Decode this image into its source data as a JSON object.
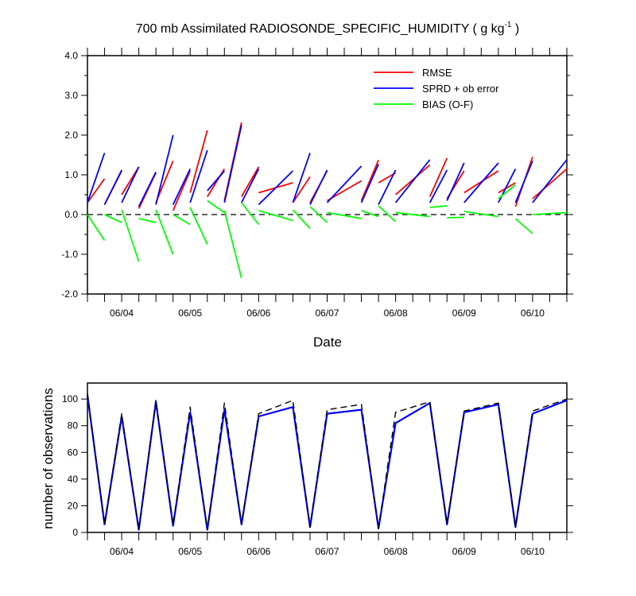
{
  "chart_data": [
    {
      "type": "line",
      "title": "700 mb Assimilated RADIOSONDE_SPECIFIC_HUMIDITY ( g kg",
      "title_superscript": "-1",
      "title_close": " )",
      "xlabel": "Date",
      "ylabel": "",
      "xlim": [
        3.5,
        10.5
      ],
      "ylim": [
        -2.0,
        4.0
      ],
      "yticks": [
        -2.0,
        -1.0,
        0.0,
        1.0,
        2.0,
        3.0,
        4.0
      ],
      "ytick_labels": [
        "-2.0",
        "-1.0",
        "0.0",
        "1.0",
        "2.0",
        "3.0",
        "4.0"
      ],
      "xticks": [
        4,
        5,
        6,
        7,
        8,
        9,
        10
      ],
      "xtick_labels": [
        "06/04",
        "06/05",
        "06/06",
        "06/07",
        "06/08",
        "06/09",
        "06/10"
      ],
      "zero_line": {
        "y": 0,
        "style": "dashed",
        "color": "#000000"
      },
      "legend_position": "top-right",
      "series": [
        {
          "name": "RMSE",
          "color": "#ff0000",
          "segments": [
            {
              "x": [
                3.5,
                3.75
              ],
              "y": [
                0.3,
                0.9
              ]
            },
            {
              "x": [
                3.75,
                4.0
              ],
              "y": [
                0.25,
                1.1
              ]
            },
            {
              "x": [
                4.0,
                4.25
              ],
              "y": [
                0.5,
                1.2
              ]
            },
            {
              "x": [
                4.25,
                4.5
              ],
              "y": [
                0.15,
                1.05
              ]
            },
            {
              "x": [
                4.5,
                4.75
              ],
              "y": [
                0.3,
                1.35
              ]
            },
            {
              "x": [
                4.75,
                5.0
              ],
              "y": [
                0.1,
                1.1
              ]
            },
            {
              "x": [
                5.0,
                5.25
              ],
              "y": [
                0.55,
                2.12
              ]
            },
            {
              "x": [
                5.25,
                5.5
              ],
              "y": [
                0.45,
                1.15
              ]
            },
            {
              "x": [
                5.5,
                5.75
              ],
              "y": [
                0.35,
                2.32
              ]
            },
            {
              "x": [
                5.75,
                6.0
              ],
              "y": [
                0.45,
                1.2
              ]
            },
            {
              "x": [
                6.0,
                6.5
              ],
              "y": [
                0.55,
                0.8
              ]
            },
            {
              "x": [
                6.5,
                6.75
              ],
              "y": [
                0.3,
                0.95
              ]
            },
            {
              "x": [
                6.75,
                7.0
              ],
              "y": [
                0.3,
                1.1
              ]
            },
            {
              "x": [
                7.0,
                7.5
              ],
              "y": [
                0.35,
                0.85
              ]
            },
            {
              "x": [
                7.5,
                7.75
              ],
              "y": [
                0.35,
                1.37
              ]
            },
            {
              "x": [
                7.75,
                8.0
              ],
              "y": [
                0.8,
                1.05
              ]
            },
            {
              "x": [
                8.0,
                8.5
              ],
              "y": [
                0.5,
                1.25
              ]
            },
            {
              "x": [
                8.5,
                8.75
              ],
              "y": [
                0.45,
                1.42
              ]
            },
            {
              "x": [
                8.75,
                9.0
              ],
              "y": [
                0.4,
                1.1
              ]
            },
            {
              "x": [
                9.0,
                9.5
              ],
              "y": [
                0.55,
                1.1
              ]
            },
            {
              "x": [
                9.5,
                9.75
              ],
              "y": [
                0.55,
                0.8
              ]
            },
            {
              "x": [
                9.75,
                10.0
              ],
              "y": [
                0.2,
                1.45
              ]
            },
            {
              "x": [
                10.0,
                10.5
              ],
              "y": [
                0.4,
                1.15
              ]
            }
          ]
        },
        {
          "name": "SPRD + ob error",
          "color": "#0000ff",
          "segments": [
            {
              "x": [
                3.5,
                3.75
              ],
              "y": [
                0.3,
                1.55
              ]
            },
            {
              "x": [
                3.75,
                4.0
              ],
              "y": [
                0.25,
                1.12
              ]
            },
            {
              "x": [
                4.0,
                4.25
              ],
              "y": [
                0.3,
                1.2
              ]
            },
            {
              "x": [
                4.25,
                4.5
              ],
              "y": [
                0.2,
                1.07
              ]
            },
            {
              "x": [
                4.5,
                4.75
              ],
              "y": [
                0.25,
                2.0
              ]
            },
            {
              "x": [
                4.75,
                5.0
              ],
              "y": [
                0.25,
                1.15
              ]
            },
            {
              "x": [
                5.0,
                5.25
              ],
              "y": [
                0.3,
                1.62
              ]
            },
            {
              "x": [
                5.25,
                5.5
              ],
              "y": [
                0.6,
                1.1
              ]
            },
            {
              "x": [
                5.5,
                5.75
              ],
              "y": [
                0.3,
                2.25
              ]
            },
            {
              "x": [
                5.75,
                6.0
              ],
              "y": [
                0.3,
                1.15
              ]
            },
            {
              "x": [
                6.0,
                6.5
              ],
              "y": [
                0.25,
                1.1
              ]
            },
            {
              "x": [
                6.5,
                6.75
              ],
              "y": [
                0.3,
                1.55
              ]
            },
            {
              "x": [
                6.75,
                7.0
              ],
              "y": [
                0.25,
                1.12
              ]
            },
            {
              "x": [
                7.0,
                7.5
              ],
              "y": [
                0.3,
                1.22
              ]
            },
            {
              "x": [
                7.5,
                7.75
              ],
              "y": [
                0.3,
                1.27
              ]
            },
            {
              "x": [
                7.75,
                8.0
              ],
              "y": [
                0.25,
                1.12
              ]
            },
            {
              "x": [
                8.0,
                8.5
              ],
              "y": [
                0.3,
                1.38
              ]
            },
            {
              "x": [
                8.5,
                8.75
              ],
              "y": [
                0.3,
                1.12
              ]
            },
            {
              "x": [
                8.75,
                9.0
              ],
              "y": [
                0.35,
                1.3
              ]
            },
            {
              "x": [
                9.0,
                9.5
              ],
              "y": [
                0.3,
                1.3
              ]
            },
            {
              "x": [
                9.5,
                9.75
              ],
              "y": [
                0.3,
                1.15
              ]
            },
            {
              "x": [
                9.75,
                10.0
              ],
              "y": [
                0.3,
                1.35
              ]
            },
            {
              "x": [
                10.0,
                10.5
              ],
              "y": [
                0.3,
                1.38
              ]
            }
          ]
        },
        {
          "name": "BIAS (O-F)",
          "color": "#00ff00",
          "segments": [
            {
              "x": [
                3.5,
                3.75
              ],
              "y": [
                0.0,
                -0.65
              ]
            },
            {
              "x": [
                3.75,
                4.0
              ],
              "y": [
                0.0,
                -0.2
              ]
            },
            {
              "x": [
                4.0,
                4.25
              ],
              "y": [
                0.12,
                -1.18
              ]
            },
            {
              "x": [
                4.25,
                4.5
              ],
              "y": [
                -0.1,
                -0.2
              ]
            },
            {
              "x": [
                4.5,
                4.75
              ],
              "y": [
                0.12,
                -1.0
              ]
            },
            {
              "x": [
                4.75,
                5.0
              ],
              "y": [
                0.0,
                -0.25
              ]
            },
            {
              "x": [
                5.0,
                5.25
              ],
              "y": [
                0.18,
                -0.75
              ]
            },
            {
              "x": [
                5.25,
                5.5
              ],
              "y": [
                0.35,
                0.05
              ]
            },
            {
              "x": [
                5.5,
                5.75
              ],
              "y": [
                0.1,
                -1.6
              ]
            },
            {
              "x": [
                5.75,
                6.0
              ],
              "y": [
                0.3,
                -0.25
              ]
            },
            {
              "x": [
                6.0,
                6.5
              ],
              "y": [
                0.1,
                -0.15
              ]
            },
            {
              "x": [
                6.5,
                6.75
              ],
              "y": [
                0.12,
                -0.35
              ]
            },
            {
              "x": [
                6.75,
                7.0
              ],
              "y": [
                0.2,
                -0.2
              ]
            },
            {
              "x": [
                7.0,
                7.5
              ],
              "y": [
                0.05,
                -0.1
              ]
            },
            {
              "x": [
                7.5,
                7.75
              ],
              "y": [
                0.1,
                -0.05
              ]
            },
            {
              "x": [
                7.75,
                8.0
              ],
              "y": [
                0.22,
                -0.18
              ]
            },
            {
              "x": [
                8.0,
                8.5
              ],
              "y": [
                0.05,
                -0.05
              ]
            },
            {
              "x": [
                8.5,
                8.75
              ],
              "y": [
                0.18,
                0.22
              ]
            },
            {
              "x": [
                8.75,
                9.0
              ],
              "y": [
                -0.08,
                -0.07
              ]
            },
            {
              "x": [
                9.0,
                9.5
              ],
              "y": [
                0.08,
                -0.05
              ]
            },
            {
              "x": [
                9.5,
                9.75
              ],
              "y": [
                0.4,
                0.75
              ]
            },
            {
              "x": [
                9.75,
                10.0
              ],
              "y": [
                -0.1,
                -0.48
              ]
            },
            {
              "x": [
                10.0,
                10.5
              ],
              "y": [
                0.0,
                0.05
              ]
            }
          ]
        }
      ]
    },
    {
      "type": "line",
      "title": "",
      "xlabel": "",
      "ylabel": "number of observations",
      "xlim": [
        3.5,
        10.5
      ],
      "ylim": [
        0,
        112
      ],
      "yticks": [
        0,
        20,
        40,
        60,
        80,
        100
      ],
      "ytick_labels": [
        "0",
        "20",
        "40",
        "60",
        "80",
        "100"
      ],
      "xticks": [
        4,
        5,
        6,
        7,
        8,
        9,
        10
      ],
      "xtick_labels": [
        "06/04",
        "06/05",
        "06/06",
        "06/07",
        "06/08",
        "06/09",
        "06/10"
      ],
      "series": [
        {
          "style": "solid",
          "color": "#0000ff",
          "x": [
            3.5,
            3.75,
            4.0,
            4.25,
            4.5,
            4.75,
            5.0,
            5.25,
            5.5,
            5.75,
            6.0,
            6.5,
            6.75,
            7.0,
            7.5,
            7.75,
            8.0,
            8.5,
            8.75,
            9.0,
            9.5,
            9.75,
            10.0,
            10.5
          ],
          "y": [
            103,
            6,
            87,
            2,
            98,
            5,
            90,
            2,
            92,
            6,
            87,
            94,
            4,
            89,
            92,
            3,
            82,
            97,
            6,
            90,
            96,
            4,
            89,
            99
          ]
        },
        {
          "style": "dashed",
          "color": "#000000",
          "x": [
            3.5,
            3.75,
            4.0,
            4.25,
            4.5,
            4.75,
            5.0,
            5.25,
            5.5,
            5.75,
            6.0,
            6.5,
            6.75,
            7.0,
            7.5,
            7.75,
            8.0,
            8.5,
            8.75,
            9.0,
            9.5,
            9.75,
            10.0,
            10.5
          ],
          "y": [
            104,
            6,
            89,
            2,
            99,
            6,
            94,
            2,
            97,
            6,
            89,
            99,
            4,
            92,
            96,
            3,
            90,
            98,
            6,
            91,
            97,
            4,
            91,
            100
          ]
        }
      ]
    }
  ]
}
